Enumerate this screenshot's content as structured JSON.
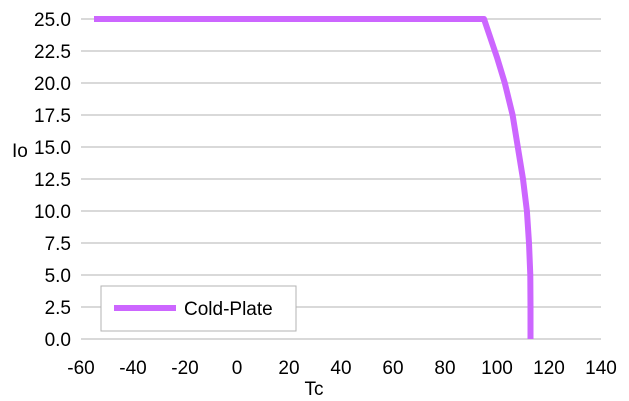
{
  "chart_data": {
    "type": "line",
    "title": "",
    "xlabel": "Tc",
    "ylabel": "Io",
    "xlim": [
      -60,
      140
    ],
    "ylim": [
      0,
      25
    ],
    "x_ticks": [
      -60,
      -40,
      -20,
      0,
      20,
      40,
      60,
      80,
      100,
      120,
      140
    ],
    "x_tick_labels": [
      "-60",
      "-40",
      "-20",
      "0",
      "20",
      "40",
      "60",
      "80",
      "100",
      "120",
      "140"
    ],
    "y_ticks": [
      0,
      2.5,
      5,
      7.5,
      10,
      12.5,
      15,
      17.5,
      20,
      22.5,
      25
    ],
    "y_tick_labels": [
      "0.0",
      "2.5",
      "5.0",
      "7.5",
      "10.0",
      "12.5",
      "15.0",
      "17.5",
      "20.0",
      "22.5",
      "25.0"
    ],
    "grid": "horizontal",
    "legend_position": "bottom-left",
    "series": [
      {
        "name": "Cold-Plate",
        "color": "#cc66ff",
        "points": [
          {
            "x": -55,
            "y": 25.0
          },
          {
            "x": 95,
            "y": 25.0
          },
          {
            "x": 97.5,
            "y": 23.5
          },
          {
            "x": 100,
            "y": 22.0
          },
          {
            "x": 103,
            "y": 20.0
          },
          {
            "x": 106,
            "y": 17.5
          },
          {
            "x": 108,
            "y": 15.0
          },
          {
            "x": 110,
            "y": 12.5
          },
          {
            "x": 111.5,
            "y": 10.0
          },
          {
            "x": 112.3,
            "y": 7.5
          },
          {
            "x": 112.8,
            "y": 5.0
          },
          {
            "x": 112.9,
            "y": 2.5
          },
          {
            "x": 112.9,
            "y": 0.0
          }
        ]
      }
    ]
  }
}
